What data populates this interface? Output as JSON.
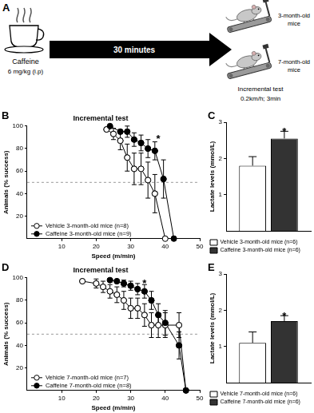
{
  "panel_a": {
    "panel": "A",
    "drug": "Caffeine",
    "dose": "6 mg/kg (i.p)",
    "interval": "30 minutes",
    "groups": [
      "3-month-old mice",
      "7-month-old mice"
    ],
    "test": "Incremental test",
    "protocol": "0.2km/h; 3min"
  },
  "chart_data": [
    {
      "panel": "B",
      "type": "line",
      "title": "Incremental test",
      "x_label": "Speed (m/min)",
      "y_label": "Animals (% success)",
      "xlim": [
        0,
        50
      ],
      "xticks": [
        10,
        20,
        30,
        40,
        50
      ],
      "ylim": [
        0,
        100
      ],
      "yticks": [
        20,
        40,
        60,
        80,
        100
      ],
      "grid": false,
      "legend": "lower left",
      "reference_line": 50,
      "series": [
        {
          "name": "Vehicle 3-month-old mice (n=8)",
          "color": "#ffffff",
          "marker": "circle",
          "x": [
            23,
            25,
            27,
            29,
            31,
            33,
            35,
            37,
            40
          ],
          "values": [
            97,
            93,
            87,
            72,
            62,
            62,
            52,
            40,
            0
          ],
          "errors": [
            null,
            5,
            8,
            12,
            14,
            14,
            16,
            17,
            null
          ]
        },
        {
          "name": "Caffeine 3-month-old mice (n=9)",
          "color": "#000000",
          "marker": "circle",
          "x": [
            24,
            27,
            29,
            31,
            33,
            35,
            37,
            39.5,
            42.5
          ],
          "values": [
            100,
            95,
            95,
            88,
            85,
            80,
            78,
            53,
            0
          ],
          "errors": [
            null,
            null,
            5,
            6,
            7,
            8,
            8,
            17,
            null
          ]
        }
      ],
      "annotations": [
        {
          "text": "*",
          "x": 38,
          "y": 90
        }
      ]
    },
    {
      "panel": "C",
      "type": "bar",
      "y_label": "Lactate levels (mmol/L)",
      "categories": [
        null
      ],
      "ylim": [
        0,
        3
      ],
      "yticks": [
        1,
        2,
        3
      ],
      "grid": false,
      "legend": "bottom",
      "tick_labels": "y",
      "series": [
        {
          "name": "Vehicle 3-month-old mice (n=6)",
          "color": "#ffffff",
          "values": [
            1.8
          ],
          "errors": [
            0.25
          ]
        },
        {
          "name": "Caffeine 3-month-old mice (n=6)",
          "color": "#333333",
          "values": [
            2.55
          ],
          "errors": [
            0.2
          ]
        }
      ],
      "annotations": [
        {
          "text": "*",
          "series": 1
        }
      ]
    },
    {
      "panel": "D",
      "type": "line",
      "title": "Incremental test",
      "x_label": "Speed (m/min)",
      "y_label": "Animals (% success)",
      "xlim": [
        0,
        50
      ],
      "xticks": [
        10,
        20,
        30,
        40,
        50
      ],
      "ylim": [
        0,
        100
      ],
      "yticks": [
        20,
        40,
        60,
        80,
        100
      ],
      "grid": false,
      "legend": "lower left",
      "reference_line": 50,
      "series": [
        {
          "name": "Vehicle 7-month-old mice (n=7)",
          "color": "#ffffff",
          "marker": "circle",
          "x": [
            16,
            20,
            22,
            24,
            26,
            28,
            30,
            32,
            34,
            36,
            38,
            40,
            44,
            46
          ],
          "values": [
            97,
            95,
            92,
            88,
            85,
            80,
            73,
            73,
            67,
            58,
            58,
            58,
            58,
            0
          ],
          "errors": [
            null,
            4,
            5,
            6,
            7,
            8,
            9,
            9,
            10,
            11,
            11,
            11,
            11,
            null
          ]
        },
        {
          "name": "Caffeine 7-month-old mice (n=8)",
          "color": "#000000",
          "marker": "circle",
          "x": [
            24,
            26,
            28,
            30,
            32,
            34,
            36,
            38,
            40,
            44,
            46
          ],
          "values": [
            98,
            97,
            95,
            93,
            90,
            88,
            80,
            67,
            60,
            40,
            0
          ],
          "errors": [
            null,
            null,
            3,
            4,
            5,
            6,
            8,
            10,
            11,
            12,
            null
          ]
        }
      ],
      "annotations": [
        {
          "text": "*",
          "x": 34,
          "y": 96
        }
      ]
    },
    {
      "panel": "E",
      "type": "bar",
      "y_label": "Lactate levels (mmol/L)",
      "categories": [
        null
      ],
      "ylim": [
        0,
        3
      ],
      "yticks": [
        1,
        2,
        3
      ],
      "grid": false,
      "legend": "bottom",
      "tick_labels": "y",
      "series": [
        {
          "name": "Vehicle 7-month-old mice (n=6)",
          "color": "#ffffff",
          "values": [
            1.1
          ],
          "errors": [
            0.3
          ]
        },
        {
          "name": "Caffeine 7-month-old mice (n=6)",
          "color": "#333333",
          "values": [
            1.7
          ],
          "errors": [
            0.15
          ]
        }
      ],
      "annotations": [
        {
          "text": "*",
          "series": 1
        }
      ]
    }
  ]
}
